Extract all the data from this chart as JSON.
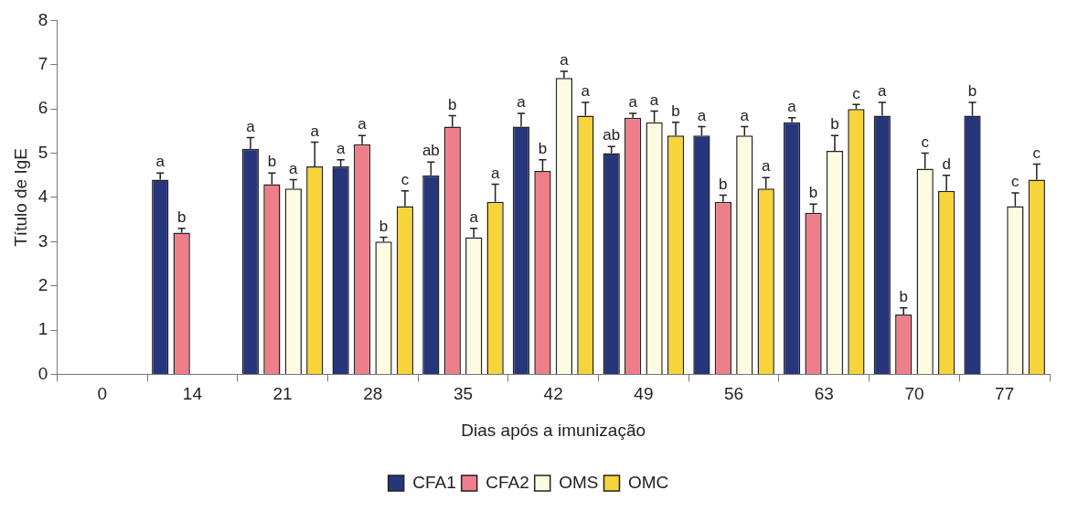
{
  "chart_data": {
    "type": "bar",
    "xlabel": "Dias após a imunização",
    "ylabel": "Título de IgE",
    "categories": [
      "0",
      "14",
      "21",
      "28",
      "35",
      "42",
      "49",
      "56",
      "63",
      "70",
      "77"
    ],
    "ylim": [
      0,
      8
    ],
    "yticks": [
      0,
      1,
      2,
      3,
      4,
      5,
      6,
      7,
      8
    ],
    "grid": false,
    "legend": "bottom",
    "series": [
      {
        "name": "CFA1",
        "color": "#27367a",
        "values": [
          0,
          4.4,
          5.1,
          4.7,
          4.5,
          5.6,
          5.0,
          5.4,
          5.7,
          5.85,
          5.85
        ],
        "errors": [
          null,
          [
            4.4,
            4.55
          ],
          [
            5.1,
            5.35
          ],
          [
            4.7,
            4.85
          ],
          [
            4.5,
            4.8
          ],
          [
            5.6,
            5.9
          ],
          [
            5.0,
            5.15
          ],
          [
            5.4,
            5.6
          ],
          [
            5.7,
            5.8
          ],
          [
            5.85,
            6.15
          ],
          [
            5.85,
            6.15
          ]
        ],
        "value_labels": [
          null,
          "a",
          "a",
          "a",
          "ab",
          "a",
          "ab",
          "a",
          "a",
          "a",
          "b"
        ]
      },
      {
        "name": "CFA2",
        "color": "#ee7f8a",
        "values": [
          0,
          3.2,
          4.3,
          5.2,
          5.6,
          4.6,
          5.8,
          3.9,
          3.65,
          1.35,
          0
        ],
        "errors": [
          null,
          [
            3.2,
            3.3
          ],
          [
            4.3,
            4.55
          ],
          [
            5.2,
            5.4
          ],
          [
            5.6,
            5.85
          ],
          [
            4.6,
            4.85
          ],
          [
            5.8,
            5.9
          ],
          [
            3.9,
            4.05
          ],
          [
            3.65,
            3.85
          ],
          [
            1.35,
            1.5
          ],
          null
        ],
        "value_labels": [
          null,
          "b",
          "b",
          "a",
          "b",
          "b",
          "a",
          "b",
          "b",
          "b",
          null
        ]
      },
      {
        "name": "OMS",
        "color": "#fdfbe2",
        "values": [
          0,
          0,
          4.2,
          3.0,
          3.1,
          6.7,
          5.7,
          5.4,
          5.05,
          4.65,
          3.8
        ],
        "errors": [
          null,
          null,
          [
            4.2,
            4.4
          ],
          [
            3.0,
            3.1
          ],
          [
            3.1,
            3.3
          ],
          [
            6.7,
            6.85
          ],
          [
            5.7,
            5.95
          ],
          [
            5.4,
            5.6
          ],
          [
            5.05,
            5.4
          ],
          [
            4.65,
            5.0
          ],
          [
            3.8,
            4.1
          ]
        ],
        "value_labels": [
          null,
          null,
          "a",
          "b",
          "a",
          "a",
          "a",
          "a",
          "b",
          "c",
          "c"
        ]
      },
      {
        "name": "OMC",
        "color": "#f6d43a",
        "values": [
          0,
          0,
          4.7,
          3.8,
          3.9,
          5.85,
          5.4,
          4.2,
          6.0,
          4.15,
          4.4
        ],
        "errors": [
          null,
          null,
          [
            4.7,
            5.25
          ],
          [
            3.8,
            4.15
          ],
          [
            3.9,
            4.3
          ],
          [
            5.85,
            6.15
          ],
          [
            5.4,
            5.7
          ],
          [
            4.2,
            4.45
          ],
          [
            6.0,
            6.1
          ],
          [
            4.15,
            4.5
          ],
          [
            4.4,
            4.75
          ]
        ],
        "value_labels": [
          null,
          null,
          "a",
          "c",
          "a",
          "a",
          "b",
          "a",
          "c",
          "d",
          "c"
        ]
      }
    ]
  }
}
